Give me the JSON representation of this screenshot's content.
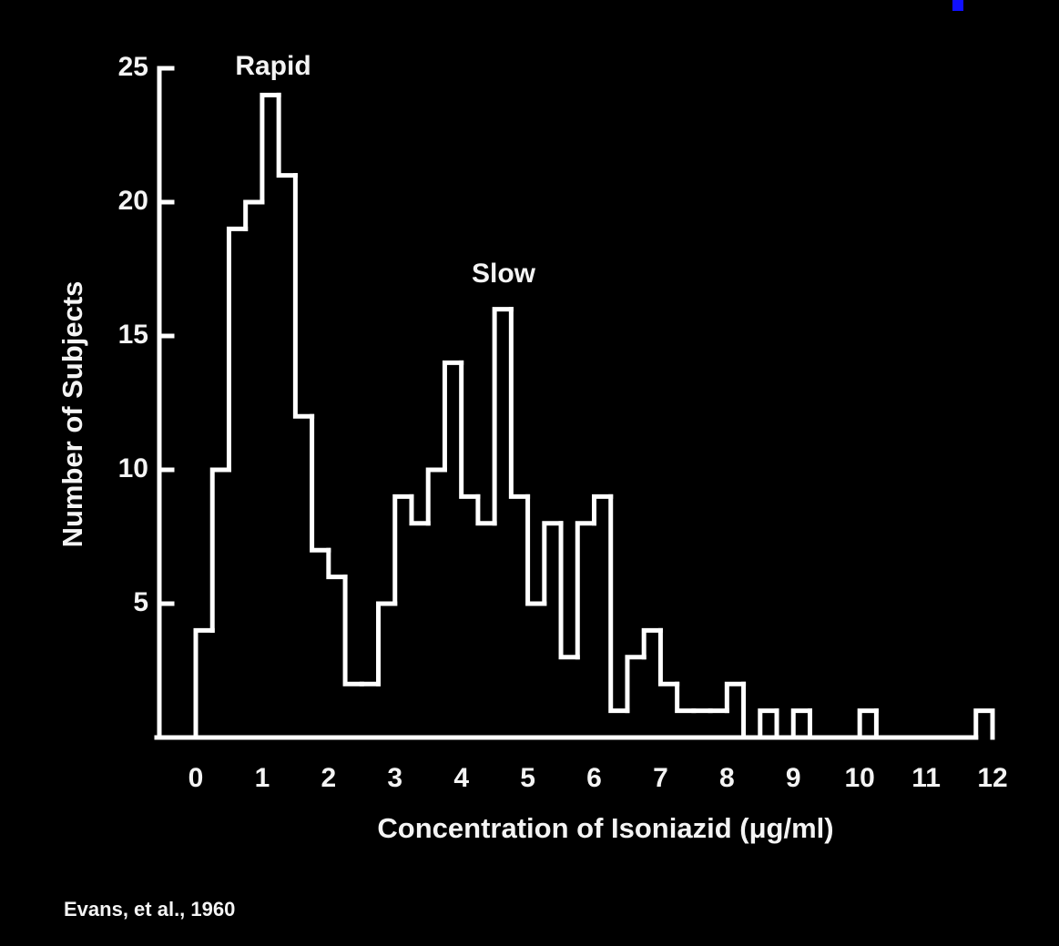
{
  "chart_data": {
    "type": "histogram",
    "x_label": "Concentration of Isoniazid (μg/ml)",
    "y_label": "Number of Subjects",
    "annotations": [
      "Rapid",
      "Slow"
    ],
    "source": "Evans, et al., 1960",
    "color": "#ffffff",
    "bins": [
      0,
      0.25,
      0.5,
      0.75,
      1,
      1.25,
      1.5,
      1.75,
      2,
      2.25,
      2.5,
      2.75,
      3,
      3.25,
      3.5,
      3.75,
      4,
      4.25,
      4.5,
      4.75,
      5,
      5.25,
      5.5,
      5.75,
      6,
      6.25,
      6.5,
      6.75,
      7,
      7.25,
      7.5,
      7.75,
      8,
      8.25,
      8.5,
      8.75,
      9,
      9.25,
      9.5,
      9.75,
      10,
      10.25,
      10.5,
      10.75,
      11,
      11.25,
      11.5,
      11.75,
      12
    ],
    "values": [
      4,
      10,
      19,
      20,
      24,
      21,
      12,
      7,
      6,
      2,
      2,
      5,
      9,
      8,
      10,
      14,
      9,
      8,
      16,
      9,
      5,
      8,
      3,
      8,
      9,
      1,
      3,
      4,
      2,
      1,
      1,
      1,
      2,
      0,
      1,
      0,
      1,
      0,
      0,
      0,
      1,
      0,
      0,
      0,
      0,
      0,
      0,
      1
    ],
    "xlim": [
      0,
      12
    ],
    "xticks": [
      0,
      1,
      2,
      3,
      4,
      5,
      6,
      7,
      8,
      9,
      10,
      11,
      12
    ],
    "ylim": [
      0,
      25
    ],
    "yticks": [
      5,
      10,
      15,
      20,
      25
    ]
  }
}
